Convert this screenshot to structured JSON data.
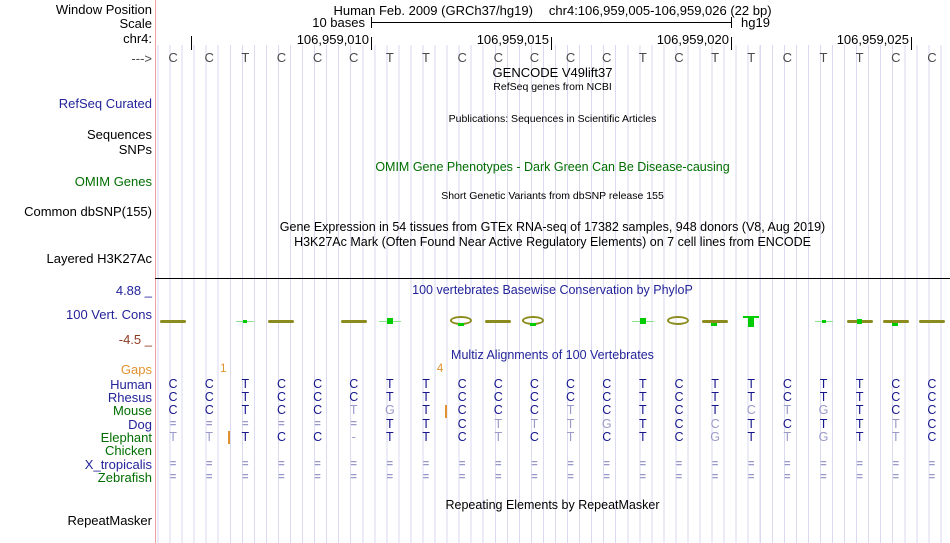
{
  "palette": {
    "black": "#000000",
    "gray": "#4a4a4a",
    "navy": "#23239a",
    "green": "#006e00",
    "orange": "#e0922f",
    "maroon": "#8e3a23",
    "dark_letter": "#16168c",
    "light_letter": "#9a9ac9",
    "olive": "#8c8c1e",
    "bright_green": "#00cc00",
    "light_green": "#8fe08f",
    "grid": "#d9d9f0",
    "edge_pink": "#f2a0a0"
  },
  "header": {
    "assembly_title": "Human Feb. 2009 (GRCh37/hg19)",
    "position_title": "chr4:106,959,005-106,959,026 (22 bp)",
    "scale_label": "10 bases",
    "assembly_short": "hg19",
    "ruler_labels": [
      "106,959,010",
      "106,959,015",
      "106,959,020",
      "106,959,025"
    ]
  },
  "left_labels": [
    {
      "text": "Window Position",
      "color": "black"
    },
    {
      "text": "Scale",
      "color": "black"
    },
    {
      "text": "chr4:",
      "color": "black"
    },
    {
      "text": "--->",
      "color": "gray"
    },
    {
      "text": "RefSeq Curated",
      "color": "navy"
    },
    {
      "text": "Sequences",
      "color": "black"
    },
    {
      "text": "SNPs",
      "color": "black"
    },
    {
      "text": "OMIM Genes",
      "color": "green"
    },
    {
      "text": "Common dbSNP(155)",
      "color": "black"
    },
    {
      "text": "Layered H3K27Ac",
      "color": "black"
    },
    {
      "text": "4.88 _",
      "color": "navy"
    },
    {
      "text": "100 Vert. Cons",
      "color": "navy"
    },
    {
      "text": "-4.5 _",
      "color": "maroon"
    },
    {
      "text": "RepeatMasker",
      "color": "black"
    }
  ],
  "center_titles": [
    {
      "text": "GENCODE V49lift37",
      "color": "black"
    },
    {
      "text": "RefSeq genes from NCBI",
      "color": "black"
    },
    {
      "text": "Publications: Sequences in Scientific Articles",
      "color": "black"
    },
    {
      "text": "OMIM Gene Phenotypes - Dark Green Can Be Disease-causing",
      "color": "green"
    },
    {
      "text": "Short Genetic Variants from dbSNP release 155",
      "color": "black"
    },
    {
      "text": "Gene Expression in 54 tissues from GTEx RNA-seq of 17382 samples, 948 donors (V8, Aug 2019)",
      "color": "black"
    },
    {
      "text": "H3K27Ac Mark (Often Found Near Active Regulatory Elements) on 7 cell lines from ENCODE",
      "color": "black"
    },
    {
      "text": "100 vertebrates Basewise Conservation by PhyloP",
      "color": "navy"
    },
    {
      "text": "Multiz Alignments of 100 Vertebrates",
      "color": "navy"
    },
    {
      "text": "Repeating Elements by RepeatMasker",
      "color": "black"
    }
  ],
  "sequence": {
    "bases": "CCTCCCTTCCCCCTCTTCTTCC"
  },
  "conservation": {
    "shapes": [
      {
        "base": 1,
        "kind": "dash"
      },
      {
        "base": 3,
        "kind": "green_dash"
      },
      {
        "base": 4,
        "kind": "dash"
      },
      {
        "base": 6,
        "kind": "dash"
      },
      {
        "base": 7,
        "kind": "green_square"
      },
      {
        "base": 9,
        "kind": "ring_green"
      },
      {
        "base": 10,
        "kind": "dash"
      },
      {
        "base": 11,
        "kind": "ring_green"
      },
      {
        "base": 14,
        "kind": "green_square"
      },
      {
        "base": 15,
        "kind": "ring"
      },
      {
        "base": 16,
        "kind": "dash_green"
      },
      {
        "base": 17,
        "kind": "green_bar"
      },
      {
        "base": 19,
        "kind": "green_dash"
      },
      {
        "base": 20,
        "kind": "dash_green_sq"
      },
      {
        "base": 21,
        "kind": "dash_green"
      },
      {
        "base": 22,
        "kind": "dash"
      }
    ]
  },
  "alignment": {
    "gaps_label": "Gaps",
    "gap_markers": [
      {
        "count": "1",
        "after_base": 2,
        "row": "Elephant"
      },
      {
        "count": "4",
        "after_base": 8,
        "row": "Mouse"
      }
    ],
    "rows": [
      {
        "name": "Human",
        "color": "navy",
        "seq": "CCTCCCTTCCCCCTCTTCTTCC",
        "shade": "dddddddddddddddddddddd"
      },
      {
        "name": "Rhesus",
        "color": "navy",
        "seq": "CCTCCCTTCCCCCTCTTCTTCC",
        "shade": "dddddddddddddddddddddd"
      },
      {
        "name": "Mouse",
        "color": "green",
        "seq": "CCTCCTGTCCCTCTCTCTGTCC",
        "shade": "dddddllddddlddddlllddd"
      },
      {
        "name": "Dog",
        "color": "navy",
        "seq": "======TTCTTTGTCCTCTTTC",
        "shade": "lllllldddllllddlddddld"
      },
      {
        "name": "Elephant",
        "color": "green",
        "seq": "TTTCC-TTCTCTCTCGTTGTTC",
        "shade": "lldddldddldldddldlldld"
      },
      {
        "name": "Chicken",
        "color": "green",
        "seq": "                      ",
        "shade": "                      "
      },
      {
        "name": "X_tropicalis",
        "color": "navy",
        "seq": "======================",
        "shade": "llllllllllllllllllllll"
      },
      {
        "name": "Zebrafish",
        "color": "green",
        "seq": "======================",
        "shade": "llllllllllllllllllllll"
      }
    ]
  },
  "repeat_track": {
    "note": ""
  }
}
